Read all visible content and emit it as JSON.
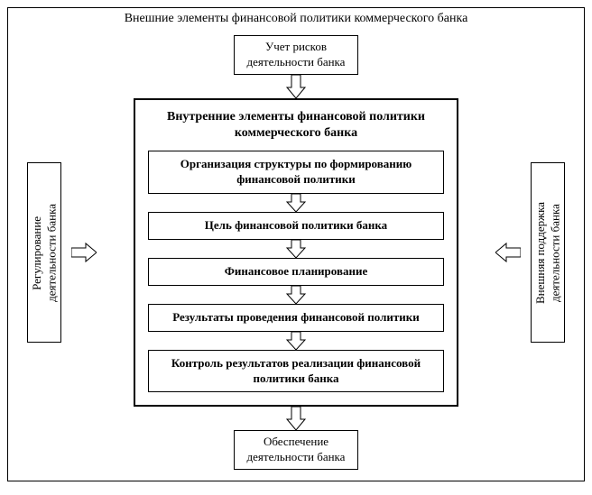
{
  "diagram": {
    "type": "flowchart",
    "background_color": "#ffffff",
    "border_color": "#000000",
    "font_family": "Times New Roman",
    "outer_title": "Внешние элементы финансовой политики коммерческого банка",
    "top_box": "Учет рисков\nдеятельности банка",
    "bottom_box": "Обеспечение\nдеятельности банка",
    "left_box": "Регулирование\nдеятельности банка",
    "right_box": "Внешняя поддержка\nдеятельности банка",
    "inner_title": "Внутренние элементы финансовой политики коммерческого банка",
    "steps": [
      {
        "label": "Организация структуры по формированию финансовой политики",
        "bold": true
      },
      {
        "label": "Цель финансовой политики банка",
        "bold": true
      },
      {
        "label": "Финансовое планирование",
        "bold": true
      },
      {
        "label": "Результаты проведения финансовой политики",
        "bold": true
      },
      {
        "label": "Контроль результатов реализации финансовой политики банка",
        "bold": true
      }
    ],
    "arrow": {
      "shaft_width": 10,
      "head_width": 20,
      "head_len": 10,
      "fill": "#ffffff",
      "stroke": "#000000"
    }
  }
}
